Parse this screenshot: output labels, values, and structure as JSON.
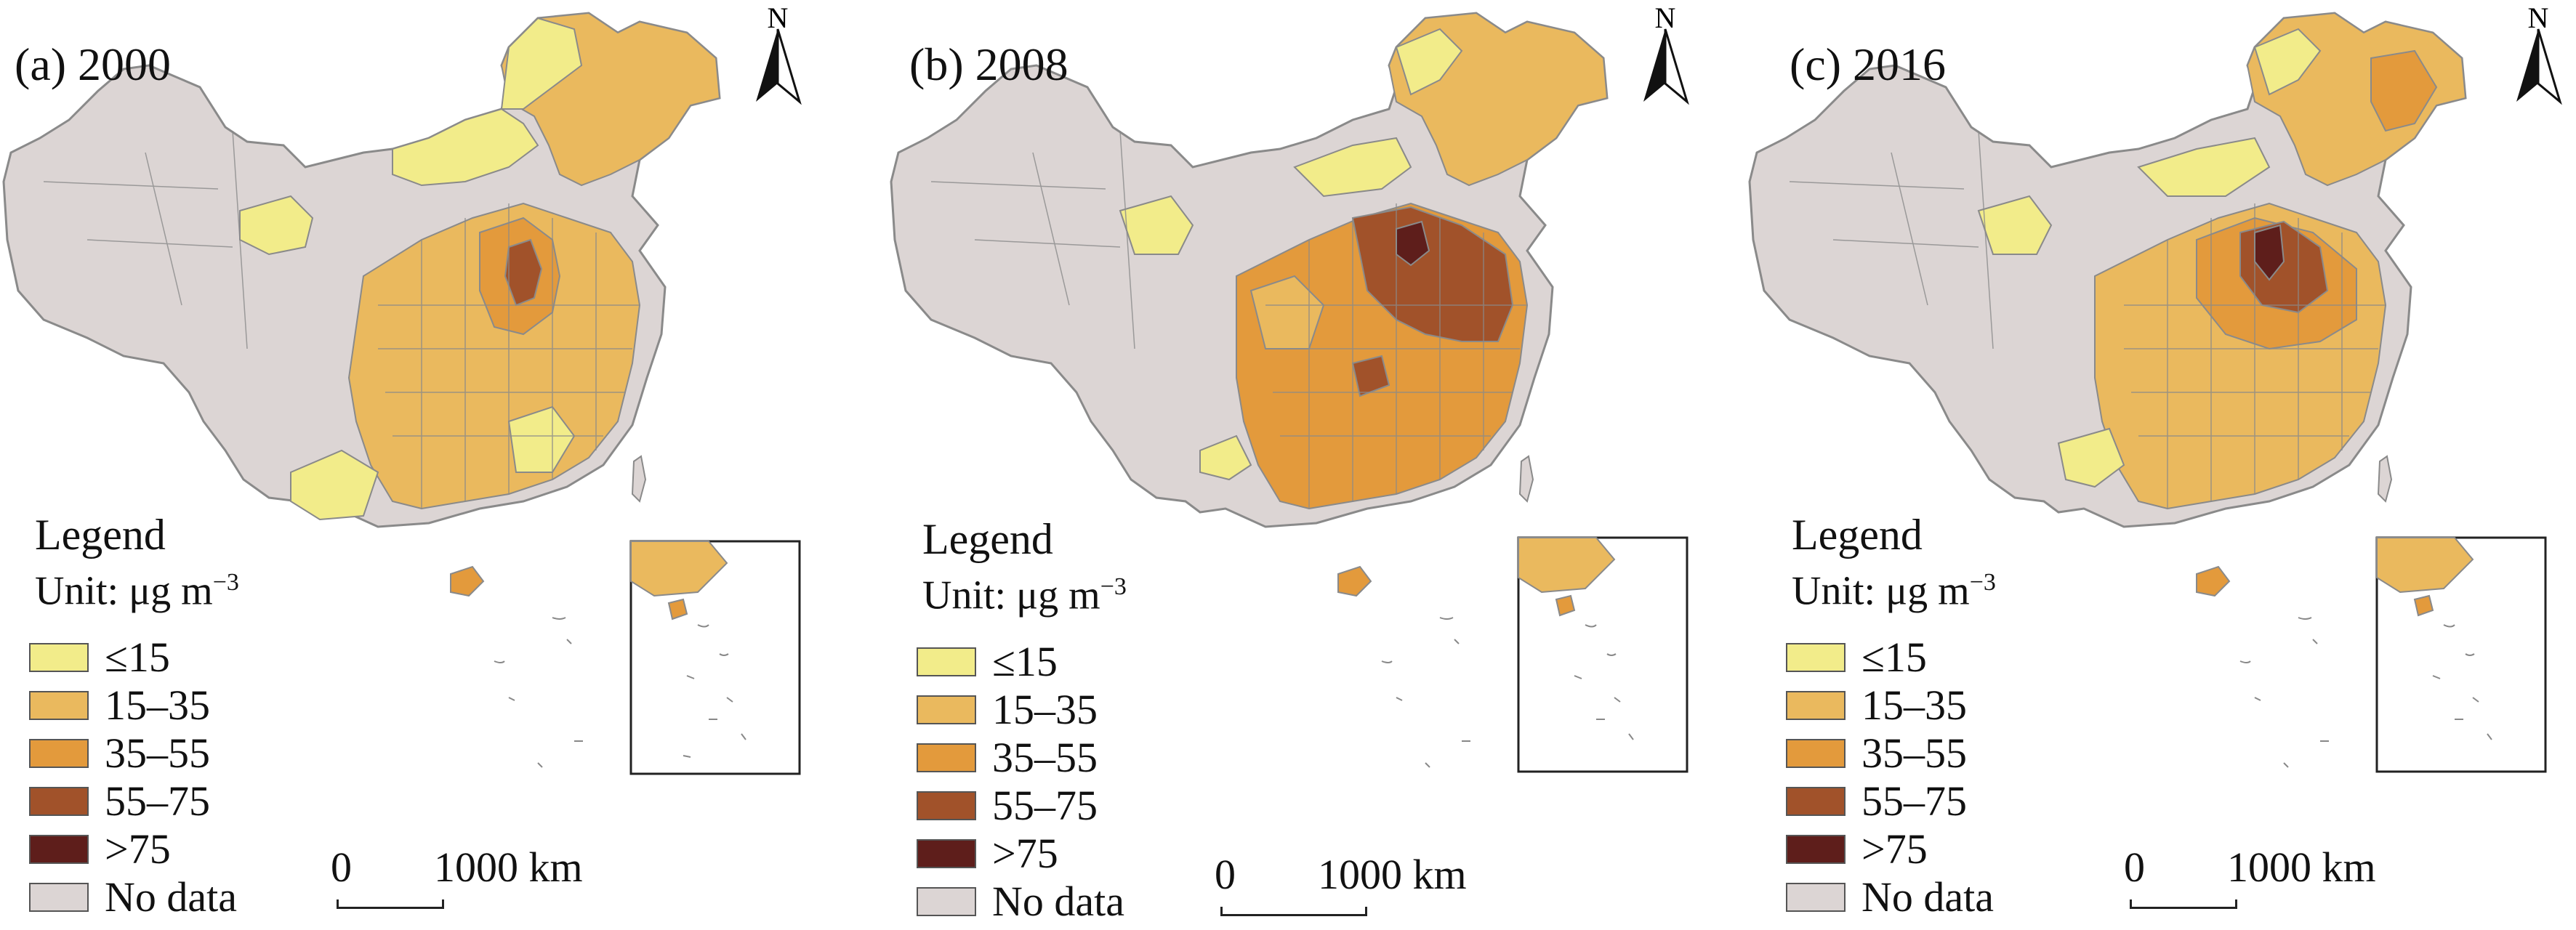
{
  "colors": {
    "no_data": "#dcd5d4",
    "c1": "#f2ec8a",
    "c2": "#eab95e",
    "c3": "#e39a3c",
    "c4": "#a1522a",
    "c5": "#5e1e1b",
    "boundary": "#8a8a8a"
  },
  "panels": [
    {
      "title": "(a) 2000",
      "legend": {
        "title": "Legend",
        "unit_prefix": "Unit:  μg m",
        "unit_exp": "−3"
      },
      "items": [
        "≤15",
        "15–35",
        "35–55",
        "55–75",
        ">75",
        "No data"
      ],
      "scale": {
        "zero": "0",
        "end": "1000 km"
      },
      "north": "N"
    },
    {
      "title": "(b) 2008",
      "legend": {
        "title": "Legend",
        "unit_prefix": "Unit:  μg m",
        "unit_exp": "−3"
      },
      "items": [
        "≤15",
        "15–35",
        "35–55",
        "55–75",
        ">75",
        "No data"
      ],
      "scale": {
        "zero": "0",
        "end": "1000 km"
      },
      "north": "N"
    },
    {
      "title": "(c) 2016",
      "legend": {
        "title": "Legend",
        "unit_prefix": "Unit:  μg m",
        "unit_exp": "−3"
      },
      "items": [
        "≤15",
        "15–35",
        "35–55",
        "55–75",
        ">75",
        "No data"
      ],
      "scale": {
        "zero": "0",
        "end": "1000 km"
      },
      "north": "N"
    }
  ]
}
